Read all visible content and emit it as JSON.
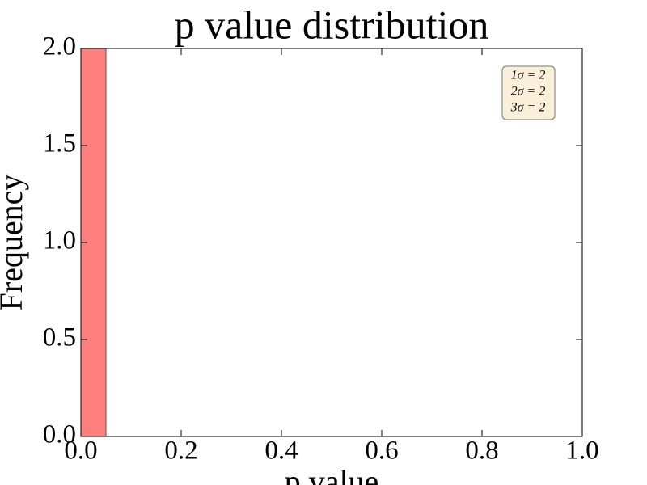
{
  "chart_data": {
    "type": "histogram",
    "title": "p value distribution",
    "x_label": "p value",
    "y_label": "Frequency",
    "bins": [
      0,
      0.05,
      0.1,
      0.15,
      0.2,
      0.25,
      0.3,
      0.35,
      0.4,
      0.45,
      0.5,
      0.55,
      0.6,
      0.65,
      0.7,
      0.75,
      0.8,
      0.85,
      0.9,
      0.95,
      1
    ],
    "values": [
      2,
      0,
      0,
      0,
      0,
      0,
      0,
      0,
      0,
      0,
      0,
      0,
      0,
      0,
      0,
      0,
      0,
      0,
      0,
      0
    ],
    "color": "#ff7f7f",
    "edgecolor": "#555555",
    "xlim": [
      0,
      1
    ],
    "xticks": [
      {
        "value": 0,
        "label": "0.0"
      },
      0.2,
      0.4,
      0.6,
      0.8,
      {
        "value": 1,
        "label": "1.0"
      }
    ],
    "ylim": [
      0,
      2
    ],
    "yticks": [
      {
        "value": 0,
        "label": "0.0"
      },
      0.5,
      {
        "value": 1,
        "label": "1.0"
      },
      1.5,
      {
        "value": 2,
        "label": "2.0"
      }
    ],
    "grid": false,
    "annotations": [
      "1σ = 2",
      "2σ = 2",
      "3σ = 2"
    ]
  }
}
